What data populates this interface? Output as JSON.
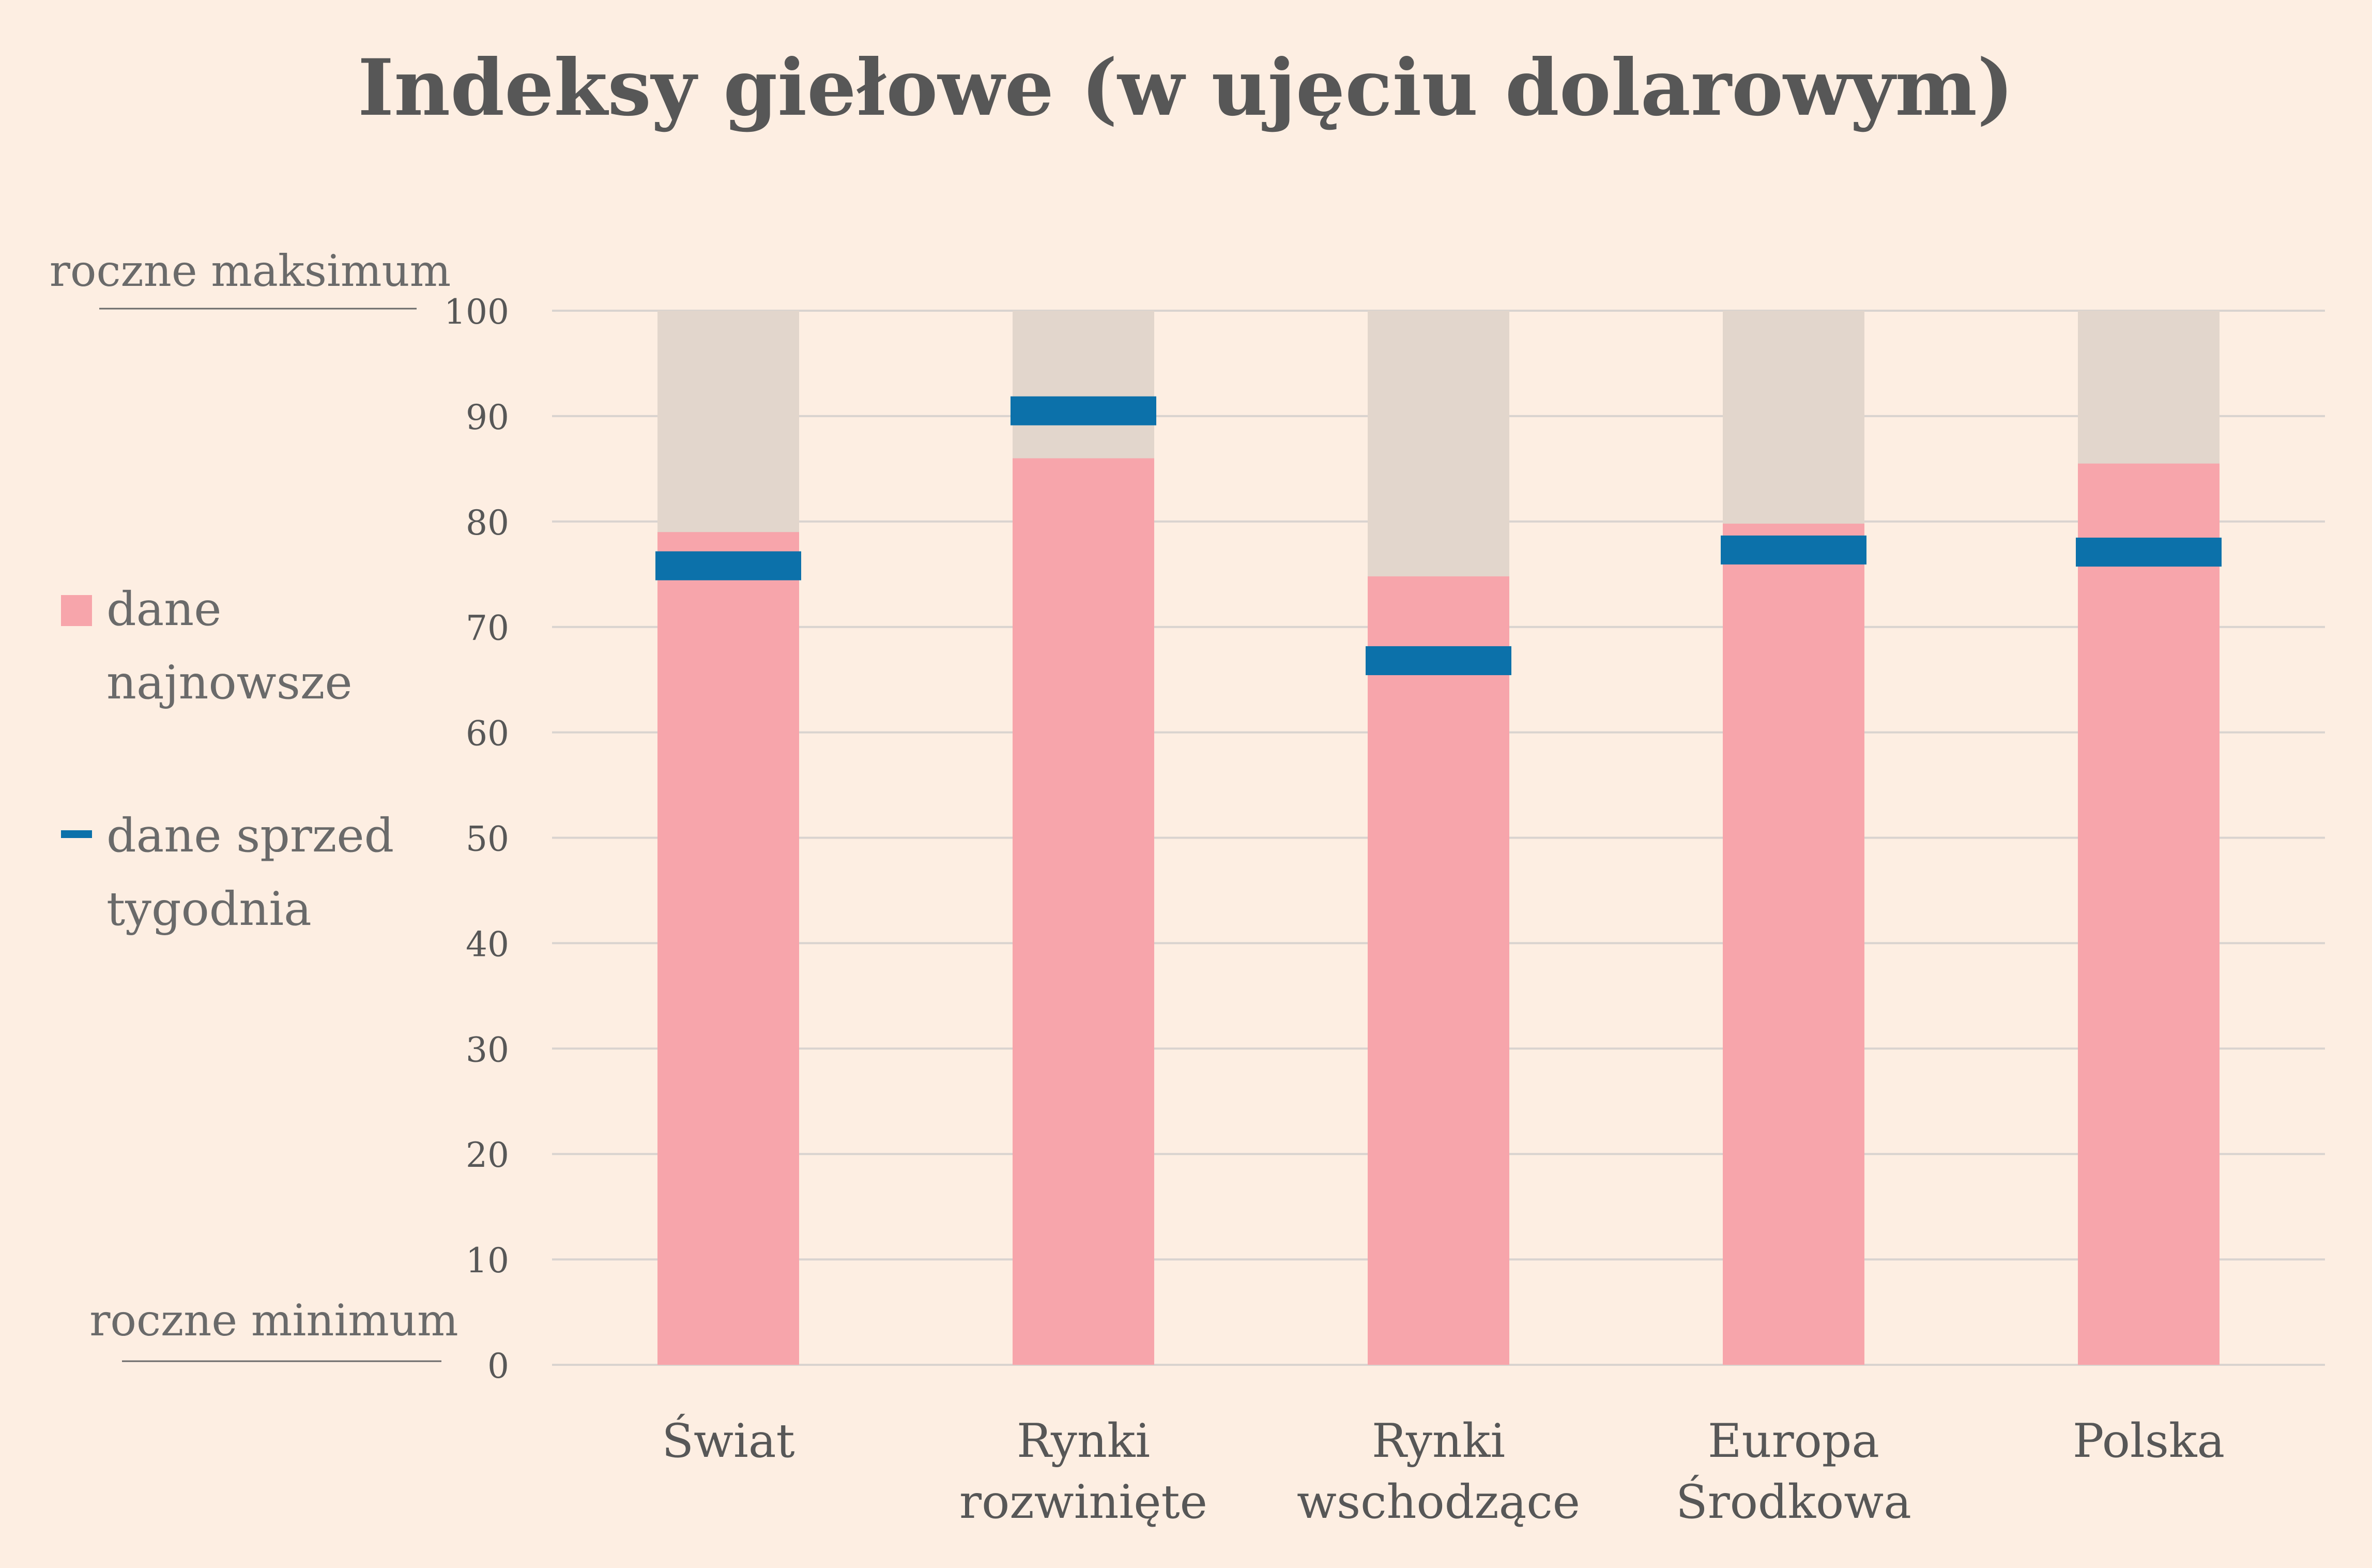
{
  "chart_data": {
    "type": "bar",
    "title": "Indeksy giełowe (w ujęciu dolarowym)",
    "categories": [
      [
        "Świat"
      ],
      [
        "Rynki",
        "rozwinięte"
      ],
      [
        "Rynki",
        "wschodzące"
      ],
      [
        "Europa",
        "Środkowa"
      ],
      [
        "Polska"
      ]
    ],
    "series": [
      {
        "name": "dane najnowsze",
        "type": "bar",
        "values": [
          79,
          86,
          74.8,
          79.8,
          85.5
        ]
      },
      {
        "name": "dane sprzed tygodnia",
        "type": "marker",
        "values": [
          75.8,
          90.5,
          66.8,
          77.3,
          77.1
        ]
      }
    ],
    "range_values": [
      100,
      100,
      100,
      100,
      100
    ],
    "ylim": [
      0,
      100
    ],
    "yticks": [
      0,
      10,
      20,
      30,
      40,
      50,
      60,
      70,
      80,
      90,
      100
    ],
    "grid": true,
    "legend": {
      "position": "left",
      "items": [
        {
          "label": [
            "dane",
            "najnowsze"
          ],
          "marker": "square"
        },
        {
          "label": [
            "dane sprzed",
            "tygodnia"
          ],
          "marker": "dash"
        }
      ]
    },
    "axis_notes": {
      "top": "roczne maksimum",
      "bottom": "roczne minimum"
    },
    "colors": {
      "bar": "#f7a5ab",
      "range": "#e2d6cc",
      "marker": "#0c71aa",
      "grid": "#d9d3cf",
      "text": "#575757",
      "background": "#fdeee2"
    }
  }
}
